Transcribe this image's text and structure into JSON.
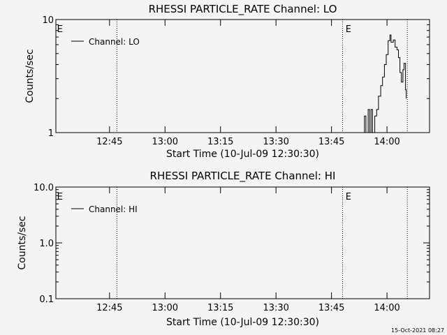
{
  "footer_timestamp": "15-Oct-2021 08:27",
  "chart_data": [
    {
      "type": "line",
      "title": "RHESSI PARTICLE_RATE Channel: LO",
      "xlabel": "Start Time (10-Jul-09 12:30:30)",
      "ylabel": "Counts/sec",
      "x_unit": "minutes after 12:30:30",
      "xlim": [
        0,
        101
      ],
      "ylim": [
        1,
        10
      ],
      "yscale": "log",
      "x_ticks": [
        {
          "label": "12:45",
          "value": 14.5
        },
        {
          "label": "13:00",
          "value": 29.5
        },
        {
          "label": "13:15",
          "value": 44.5
        },
        {
          "label": "13:30",
          "value": 59.5
        },
        {
          "label": "13:45",
          "value": 74.5
        },
        {
          "label": "14:00",
          "value": 89.5
        }
      ],
      "y_ticks": [
        {
          "label": "10",
          "value": 10
        },
        {
          "label": "1",
          "value": 1
        }
      ],
      "vlines": [
        16.5,
        77.5,
        95.0
      ],
      "e_markers": [
        {
          "label": "E",
          "x": 0.3
        },
        {
          "label": "E",
          "x": 78.3
        }
      ],
      "legend": {
        "entries": [
          "Channel: LO"
        ],
        "position": "top-left"
      },
      "series": [
        {
          "name": "Channel: LO",
          "x": [
            83.4,
            83.4,
            83.8,
            83.8,
            84.4,
            84.4,
            84.8,
            84.8,
            85.2,
            85.2,
            85.6,
            85.6,
            86.2,
            86.2,
            86.7,
            86.7,
            87.2,
            87.2,
            87.8,
            87.8,
            88.3,
            88.3,
            88.8,
            88.8,
            89.3,
            89.3,
            89.8,
            89.8,
            90.3,
            90.3,
            90.6,
            90.6,
            91.2,
            91.2,
            91.7,
            91.7,
            92.2,
            92.2,
            92.6,
            92.6,
            93.0,
            93.0,
            93.4,
            93.4,
            93.8,
            93.8,
            94.1,
            94.1,
            94.5,
            94.5,
            94.7,
            94.7
          ],
          "y": [
            1.0,
            1.4,
            1.4,
            1.0,
            1.0,
            1.6,
            1.6,
            1.0,
            1.0,
            1.6,
            1.6,
            1.0,
            1.0,
            1.4,
            1.4,
            1.6,
            1.6,
            2.1,
            2.1,
            2.6,
            2.6,
            3.1,
            3.1,
            4.0,
            4.0,
            4.9,
            4.9,
            6.5,
            6.5,
            7.3,
            7.3,
            6.3,
            6.3,
            6.6,
            6.6,
            5.7,
            5.7,
            5.4,
            5.4,
            4.6,
            4.6,
            3.4,
            3.4,
            2.8,
            2.8,
            3.6,
            3.6,
            4.1,
            4.1,
            2.4,
            2.4,
            2.0
          ]
        }
      ]
    },
    {
      "type": "line",
      "title": "RHESSI PARTICLE_RATE Channel: HI",
      "xlabel": "Start Time (10-Jul-09 12:30:30)",
      "ylabel": "Counts/sec",
      "x_unit": "minutes after 12:30:30",
      "xlim": [
        0,
        101
      ],
      "ylim": [
        0.1,
        10
      ],
      "yscale": "log",
      "x_ticks": [
        {
          "label": "12:45",
          "value": 14.5
        },
        {
          "label": "13:00",
          "value": 29.5
        },
        {
          "label": "13:15",
          "value": 44.5
        },
        {
          "label": "13:30",
          "value": 59.5
        },
        {
          "label": "13:45",
          "value": 74.5
        },
        {
          "label": "14:00",
          "value": 89.5
        }
      ],
      "y_ticks": [
        {
          "label": "10.0",
          "value": 10
        },
        {
          "label": "1.0",
          "value": 1
        },
        {
          "label": "0.1",
          "value": 0.1
        }
      ],
      "vlines": [
        16.5,
        77.5,
        95.0
      ],
      "e_markers": [
        {
          "label": "E",
          "x": 0.3
        },
        {
          "label": "E",
          "x": 78.3
        }
      ],
      "legend": {
        "entries": [
          "Channel: HI"
        ],
        "position": "top-left"
      },
      "series": [
        {
          "name": "Channel: HI",
          "x": [],
          "y": []
        }
      ]
    }
  ]
}
